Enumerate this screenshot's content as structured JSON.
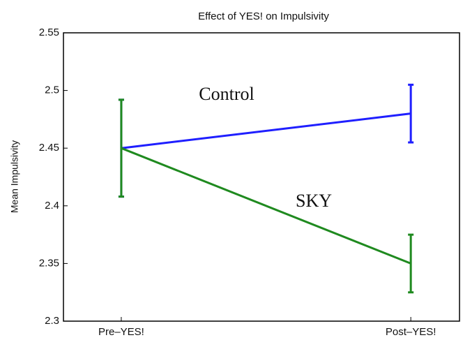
{
  "chart_data": {
    "type": "line",
    "title": "Effect of YES! on Impulsivity",
    "y_label": "Mean Impulsivity",
    "categories": [
      "Pre–YES!",
      "Post–YES!"
    ],
    "series": [
      {
        "name": "Control",
        "color": "#1f1fff",
        "values": [
          2.45,
          2.48
        ],
        "errors": [
          0.042,
          0.025
        ]
      },
      {
        "name": "SKY",
        "color": "#1f8a1f",
        "values": [
          2.45,
          2.35
        ],
        "errors": [
          0.042,
          0.025
        ]
      }
    ],
    "ylim": [
      2.3,
      2.55
    ],
    "yticks": [
      2.3,
      2.35,
      2.4,
      2.45,
      2.5,
      2.55
    ]
  }
}
